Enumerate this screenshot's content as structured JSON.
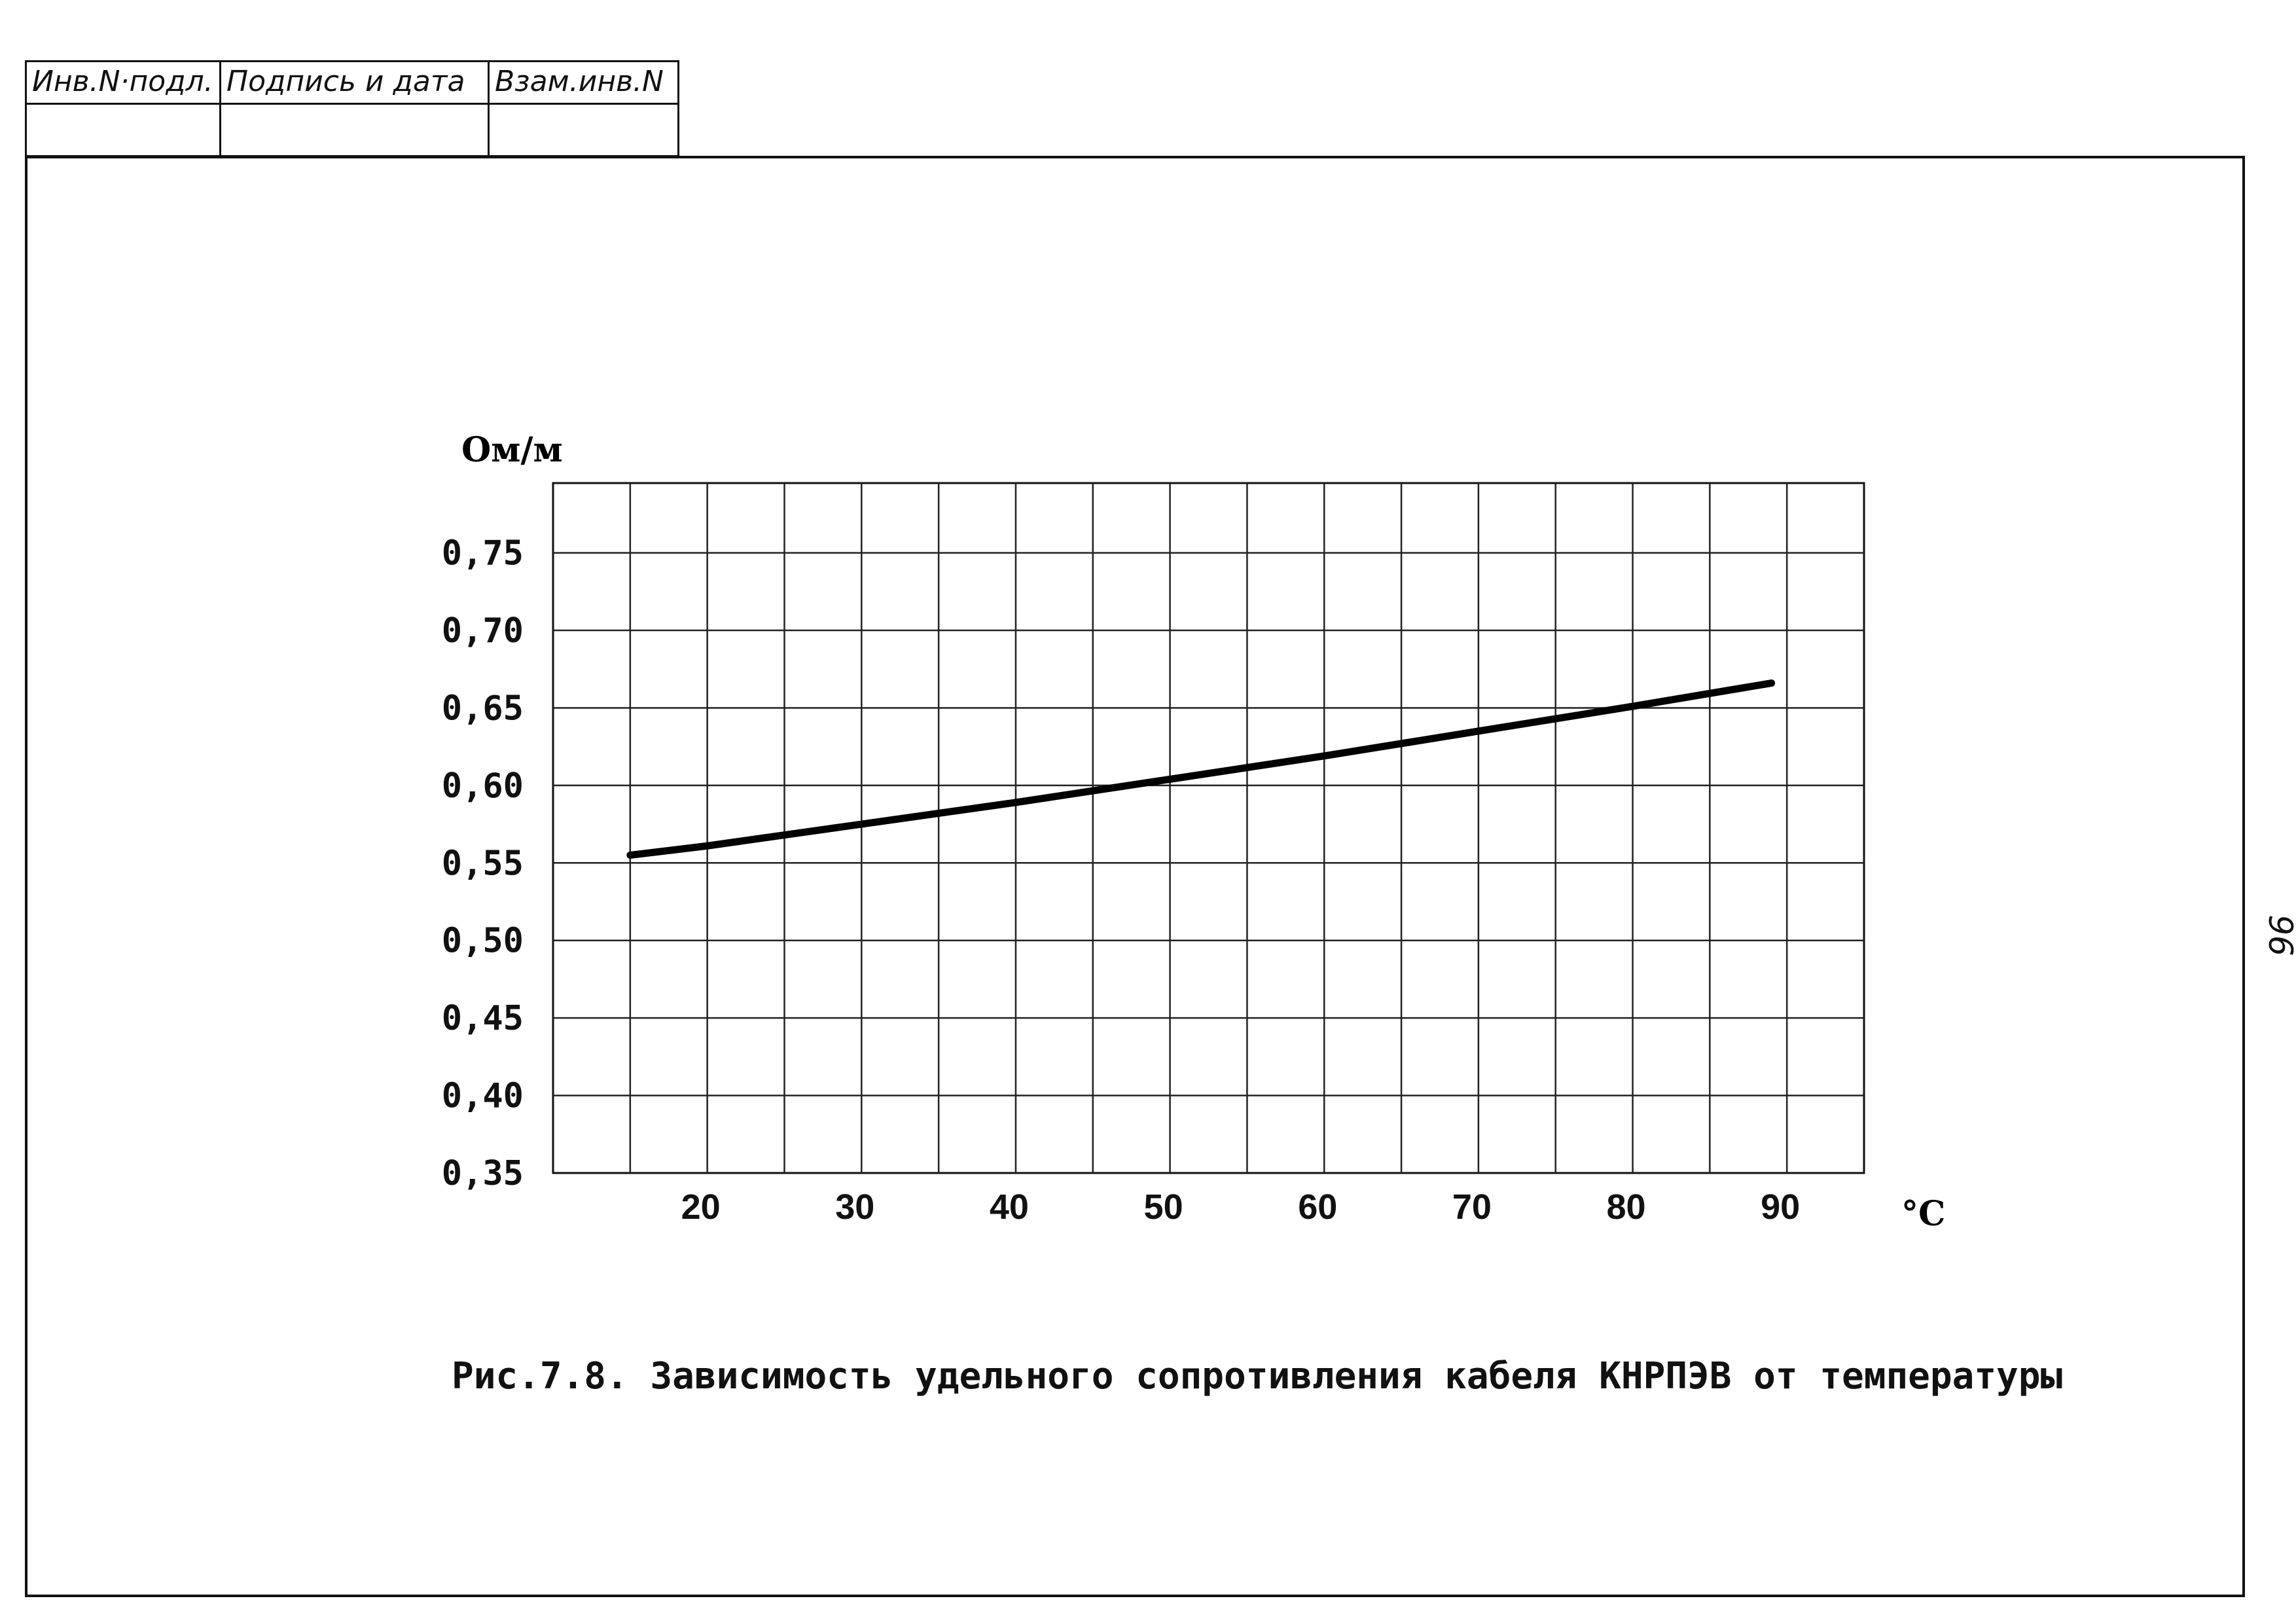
{
  "stamp": {
    "headers": [
      "Инв.N·подл.",
      "Подпись и дата",
      "Взам.инв.N"
    ]
  },
  "page_number": "96",
  "caption": "Рис.7.8. Зависимость удельного сопротивления кабеля КНРПЭВ от температуры",
  "chart_data": {
    "type": "line",
    "ylabel": "Ом/м",
    "xlabel": "°C",
    "title": "",
    "x_ticks": [
      "20",
      "30",
      "40",
      "50",
      "60",
      "70",
      "80",
      "90"
    ],
    "y_ticks": [
      "0,35",
      "0,40",
      "0,45",
      "0,50",
      "0,55",
      "0,60",
      "0,65",
      "0,70",
      "0,75"
    ],
    "xlim": [
      10,
      95
    ],
    "ylim": [
      0.35,
      0.795
    ],
    "grid": true,
    "series": [
      {
        "x": [
          15,
          20,
          30,
          40,
          50,
          60,
          70,
          80,
          89
        ],
        "y": [
          0.555,
          0.561,
          0.575,
          0.589,
          0.604,
          0.619,
          0.635,
          0.651,
          0.666
        ]
      }
    ]
  }
}
